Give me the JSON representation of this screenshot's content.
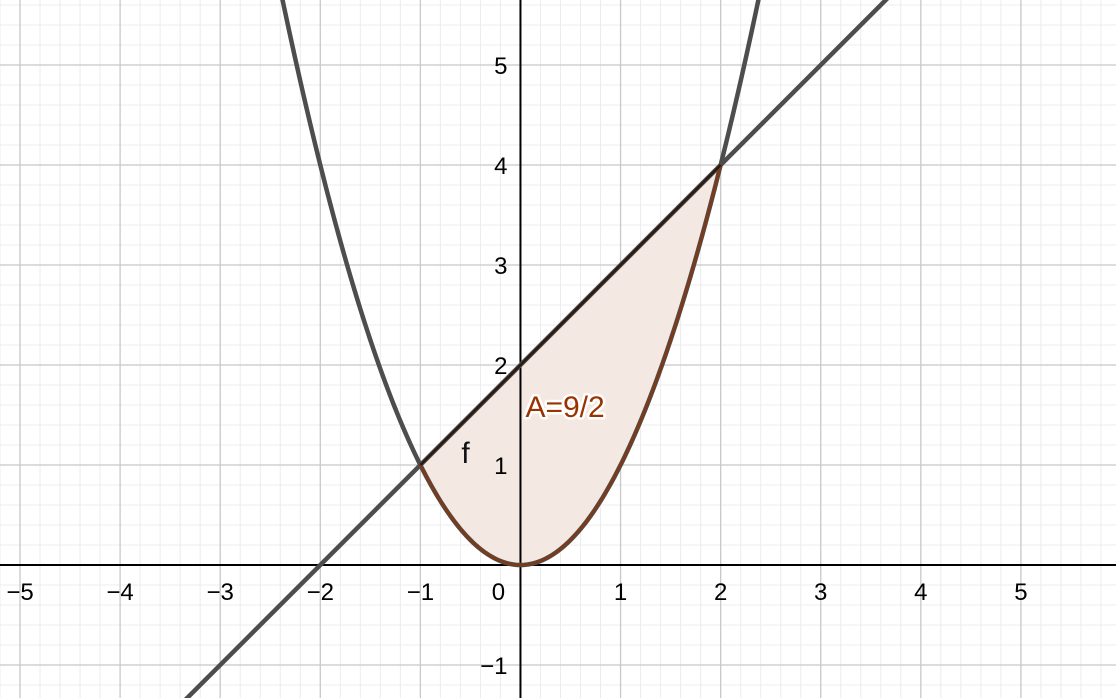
{
  "chart_data": {
    "type": "function-plot",
    "grid": true,
    "minor_grid": true,
    "xlim": [
      -5.2,
      5.95
    ],
    "ylim": [
      -1.33,
      5.65
    ],
    "x_ticks": [
      -5,
      -4,
      -3,
      -2,
      -1,
      0,
      1,
      2,
      3,
      4,
      5
    ],
    "y_ticks": [
      -1,
      1,
      2,
      3,
      4,
      5
    ],
    "x_tick_labels": [
      "−5",
      "−4",
      "−3",
      "−2",
      "−1",
      "0",
      "1",
      "2",
      "3",
      "4",
      "5"
    ],
    "y_tick_labels": [
      "−1",
      "1",
      "2",
      "3",
      "4",
      "5"
    ],
    "origin_label": "0",
    "series": [
      {
        "name": "f",
        "expression": "y = x^2",
        "color": "#4d4d4d"
      },
      {
        "expression": "y = x + 2",
        "color": "#4d4d4d"
      }
    ],
    "shaded_region": {
      "between": [
        "y = x + 2",
        "y = x^2"
      ],
      "x_range": [
        -1,
        2
      ],
      "fill": "#f4e8e3",
      "edge_color": "#7a3b1c",
      "label": "A=9/2",
      "label_color": "#993300"
    },
    "intersection_points": [
      [
        -1,
        1
      ],
      [
        2,
        4
      ]
    ],
    "colors": {
      "axis": "#000000",
      "major_grid": "#c8c8c8",
      "minor_grid": "#ececec"
    }
  }
}
